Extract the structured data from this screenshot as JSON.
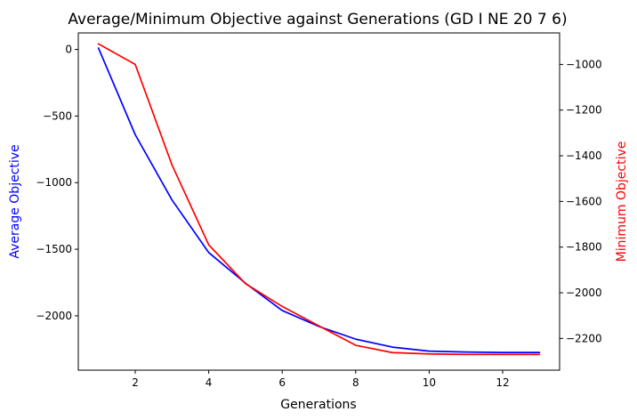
{
  "chart_data": {
    "type": "line",
    "title": "Average/Minimum Objective against Generations (GD I NE 20 7 6)",
    "xlabel": "Generations",
    "ylabel_left": "Average Objective",
    "ylabel_right": "Minimum Objective",
    "x": [
      1,
      2,
      3,
      4,
      5,
      6,
      7,
      8,
      9,
      10,
      11,
      12,
      13
    ],
    "xlim": [
      0.45,
      13.55
    ],
    "xticks": [
      2,
      4,
      6,
      8,
      10,
      12
    ],
    "grid": false,
    "series": [
      {
        "name": "Average Objective",
        "axis": "left",
        "color": "#0000ff",
        "values": [
          10,
          -640,
          -1130,
          -1525,
          -1755,
          -1960,
          -2080,
          -2175,
          -2235,
          -2265,
          -2272,
          -2275,
          -2275
        ]
      },
      {
        "name": "Minimum Objective",
        "axis": "right",
        "color": "#ff0000",
        "values": [
          -910,
          -1000,
          -1440,
          -1790,
          -1960,
          -2060,
          -2145,
          -2230,
          -2262,
          -2268,
          -2270,
          -2270,
          -2270
        ]
      }
    ],
    "ylim_left": [
      -2408,
      124
    ],
    "yticks_left": [
      0,
      -500,
      -1000,
      -1500,
      -2000
    ],
    "ytick_labels_left": [
      "0",
      "−500",
      "−1000",
      "−1500",
      "−2000"
    ],
    "ylim_right": [
      -2339,
      -862
    ],
    "yticks_right": [
      -1000,
      -1200,
      -1400,
      -1600,
      -1800,
      -2000,
      -2200
    ],
    "ytick_labels_right": [
      "−1000",
      "−1200",
      "−1400",
      "−1600",
      "−1800",
      "−2000",
      "−2200"
    ],
    "left_label_color": "#0000ff",
    "right_label_color": "#ff0000"
  }
}
